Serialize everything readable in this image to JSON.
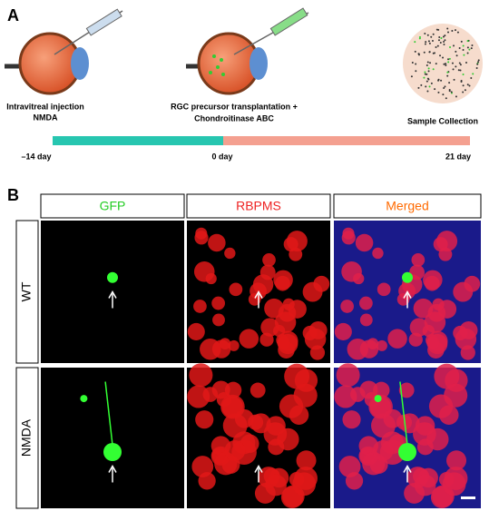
{
  "panel_a": {
    "label": "A",
    "stages": [
      {
        "lines": [
          "Intravitreal injection",
          "NMDA"
        ]
      },
      {
        "lines": [
          "RGC precursor transplantation +",
          "Chondroitinase ABC"
        ]
      },
      {
        "lines": [
          "Sample Collection"
        ]
      }
    ],
    "timeline": [
      "–14 day",
      "0 day",
      "21 day"
    ]
  },
  "panel_b": {
    "label": "B",
    "columns": [
      "GFP",
      "RBPMS",
      "Merged"
    ],
    "rows": [
      "WT",
      "NMDA"
    ]
  }
}
